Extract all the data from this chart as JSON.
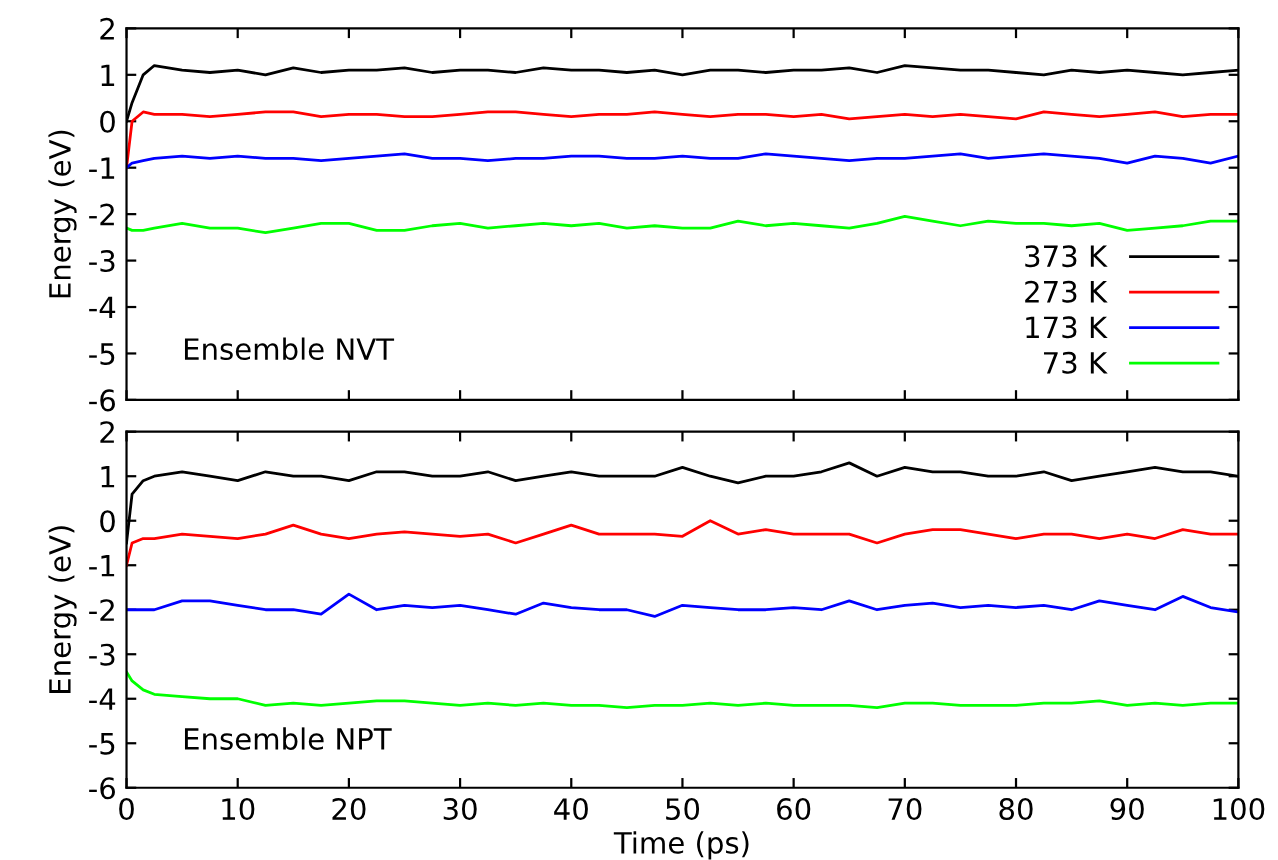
{
  "chart_data": [
    {
      "type": "line",
      "ylabel": "Energy (eV)",
      "annotations": [
        "Ensemble NVT"
      ],
      "legend": "bottom right",
      "grid": false,
      "tick_labels": "y",
      "x": [
        0,
        0.5,
        1.5,
        2.5,
        5,
        7.5,
        10,
        12.5,
        15,
        17.5,
        20,
        22.5,
        25,
        27.5,
        30,
        32.5,
        35,
        37.5,
        40,
        42.5,
        45,
        47.5,
        50,
        52.5,
        55,
        57.5,
        60,
        62.5,
        65,
        67.5,
        70,
        72.5,
        75,
        77.5,
        80,
        82.5,
        85,
        87.5,
        90,
        92.5,
        95,
        97.5,
        100
      ],
      "xlim": [
        0,
        100
      ],
      "xticks": [
        0,
        10,
        20,
        30,
        40,
        50,
        60,
        70,
        80,
        90,
        100
      ],
      "ylim": [
        -6,
        2
      ],
      "yticks": [
        -6,
        -5,
        -4,
        -3,
        -2,
        -1,
        0,
        1,
        2
      ],
      "series": [
        {
          "name": "373 K",
          "color": "#000000",
          "values": [
            0.0,
            0.4,
            1.0,
            1.2,
            1.1,
            1.05,
            1.1,
            1.0,
            1.15,
            1.05,
            1.1,
            1.1,
            1.15,
            1.05,
            1.1,
            1.1,
            1.05,
            1.15,
            1.1,
            1.1,
            1.05,
            1.1,
            1.0,
            1.1,
            1.1,
            1.05,
            1.1,
            1.1,
            1.15,
            1.05,
            1.2,
            1.15,
            1.1,
            1.1,
            1.05,
            1.0,
            1.1,
            1.05,
            1.1,
            1.05,
            1.0,
            1.05,
            1.1
          ]
        },
        {
          "name": "273 K",
          "color": "#ff0000",
          "values": [
            -1.0,
            0.0,
            0.2,
            0.15,
            0.15,
            0.1,
            0.15,
            0.2,
            0.2,
            0.1,
            0.15,
            0.15,
            0.1,
            0.1,
            0.15,
            0.2,
            0.2,
            0.15,
            0.1,
            0.15,
            0.15,
            0.2,
            0.15,
            0.1,
            0.15,
            0.15,
            0.1,
            0.15,
            0.05,
            0.1,
            0.15,
            0.1,
            0.15,
            0.1,
            0.05,
            0.2,
            0.15,
            0.1,
            0.15,
            0.2,
            0.1,
            0.15,
            0.15
          ]
        },
        {
          "name": "173 K",
          "color": "#0000ff",
          "values": [
            -1.0,
            -0.9,
            -0.85,
            -0.8,
            -0.75,
            -0.8,
            -0.75,
            -0.8,
            -0.8,
            -0.85,
            -0.8,
            -0.75,
            -0.7,
            -0.8,
            -0.8,
            -0.85,
            -0.8,
            -0.8,
            -0.75,
            -0.75,
            -0.8,
            -0.8,
            -0.75,
            -0.8,
            -0.8,
            -0.7,
            -0.75,
            -0.8,
            -0.85,
            -0.8,
            -0.8,
            -0.75,
            -0.7,
            -0.8,
            -0.75,
            -0.7,
            -0.75,
            -0.8,
            -0.9,
            -0.75,
            -0.8,
            -0.9,
            -0.75
          ]
        },
        {
          "name": "73 K",
          "color": "#00ff00",
          "values": [
            -2.3,
            -2.35,
            -2.35,
            -2.3,
            -2.2,
            -2.3,
            -2.3,
            -2.4,
            -2.3,
            -2.2,
            -2.2,
            -2.35,
            -2.35,
            -2.25,
            -2.2,
            -2.3,
            -2.25,
            -2.2,
            -2.25,
            -2.2,
            -2.3,
            -2.25,
            -2.3,
            -2.3,
            -2.15,
            -2.25,
            -2.2,
            -2.25,
            -2.3,
            -2.2,
            -2.05,
            -2.15,
            -2.25,
            -2.15,
            -2.2,
            -2.2,
            -2.25,
            -2.2,
            -2.35,
            -2.3,
            -2.25,
            -2.15,
            -2.15
          ]
        }
      ]
    },
    {
      "type": "line",
      "xlabel": "Time (ps)",
      "ylabel": "Energy (eV)",
      "annotations": [
        "Ensemble NPT"
      ],
      "grid": false,
      "x": [
        0,
        0.5,
        1.5,
        2.5,
        5,
        7.5,
        10,
        12.5,
        15,
        17.5,
        20,
        22.5,
        25,
        27.5,
        30,
        32.5,
        35,
        37.5,
        40,
        42.5,
        45,
        47.5,
        50,
        52.5,
        55,
        57.5,
        60,
        62.5,
        65,
        67.5,
        70,
        72.5,
        75,
        77.5,
        80,
        82.5,
        85,
        87.5,
        90,
        92.5,
        95,
        97.5,
        100
      ],
      "xlim": [
        0,
        100
      ],
      "xticks": [
        0,
        10,
        20,
        30,
        40,
        50,
        60,
        70,
        80,
        90,
        100
      ],
      "ylim": [
        -6,
        2
      ],
      "yticks": [
        -6,
        -5,
        -4,
        -3,
        -2,
        -1,
        0,
        1,
        2
      ],
      "series": [
        {
          "color": "#000000",
          "values": [
            -0.5,
            0.6,
            0.9,
            1.0,
            1.1,
            1.0,
            0.9,
            1.1,
            1.0,
            1.0,
            0.9,
            1.1,
            1.1,
            1.0,
            1.0,
            1.1,
            0.9,
            1.0,
            1.1,
            1.0,
            1.0,
            1.0,
            1.2,
            1.0,
            0.85,
            1.0,
            1.0,
            1.1,
            1.3,
            1.0,
            1.2,
            1.1,
            1.1,
            1.0,
            1.0,
            1.1,
            0.9,
            1.0,
            1.1,
            1.2,
            1.1,
            1.1,
            1.0
          ]
        },
        {
          "color": "#ff0000",
          "values": [
            -1.0,
            -0.5,
            -0.4,
            -0.4,
            -0.3,
            -0.35,
            -0.4,
            -0.3,
            -0.1,
            -0.3,
            -0.4,
            -0.3,
            -0.25,
            -0.3,
            -0.35,
            -0.3,
            -0.5,
            -0.3,
            -0.1,
            -0.3,
            -0.3,
            -0.3,
            -0.35,
            0.0,
            -0.3,
            -0.2,
            -0.3,
            -0.3,
            -0.3,
            -0.5,
            -0.3,
            -0.2,
            -0.2,
            -0.3,
            -0.4,
            -0.3,
            -0.3,
            -0.4,
            -0.3,
            -0.4,
            -0.2,
            -0.3,
            -0.3
          ]
        },
        {
          "color": "#0000ff",
          "values": [
            -2.0,
            -2.0,
            -2.0,
            -2.0,
            -1.8,
            -1.8,
            -1.9,
            -2.0,
            -2.0,
            -2.1,
            -1.65,
            -2.0,
            -1.9,
            -1.95,
            -1.9,
            -2.0,
            -2.1,
            -1.85,
            -1.95,
            -2.0,
            -2.0,
            -2.15,
            -1.9,
            -1.95,
            -2.0,
            -2.0,
            -1.95,
            -2.0,
            -1.8,
            -2.0,
            -1.9,
            -1.85,
            -1.95,
            -1.9,
            -1.95,
            -1.9,
            -2.0,
            -1.8,
            -1.9,
            -2.0,
            -1.7,
            -1.95,
            -2.05
          ]
        },
        {
          "color": "#00ff00",
          "values": [
            -3.4,
            -3.6,
            -3.8,
            -3.9,
            -3.95,
            -4.0,
            -4.0,
            -4.15,
            -4.1,
            -4.15,
            -4.1,
            -4.05,
            -4.05,
            -4.1,
            -4.15,
            -4.1,
            -4.15,
            -4.1,
            -4.15,
            -4.15,
            -4.2,
            -4.15,
            -4.15,
            -4.1,
            -4.15,
            -4.1,
            -4.15,
            -4.15,
            -4.15,
            -4.2,
            -4.1,
            -4.1,
            -4.15,
            -4.15,
            -4.15,
            -4.1,
            -4.1,
            -4.05,
            -4.15,
            -4.1,
            -4.15,
            -4.1,
            -4.1
          ]
        }
      ]
    }
  ]
}
